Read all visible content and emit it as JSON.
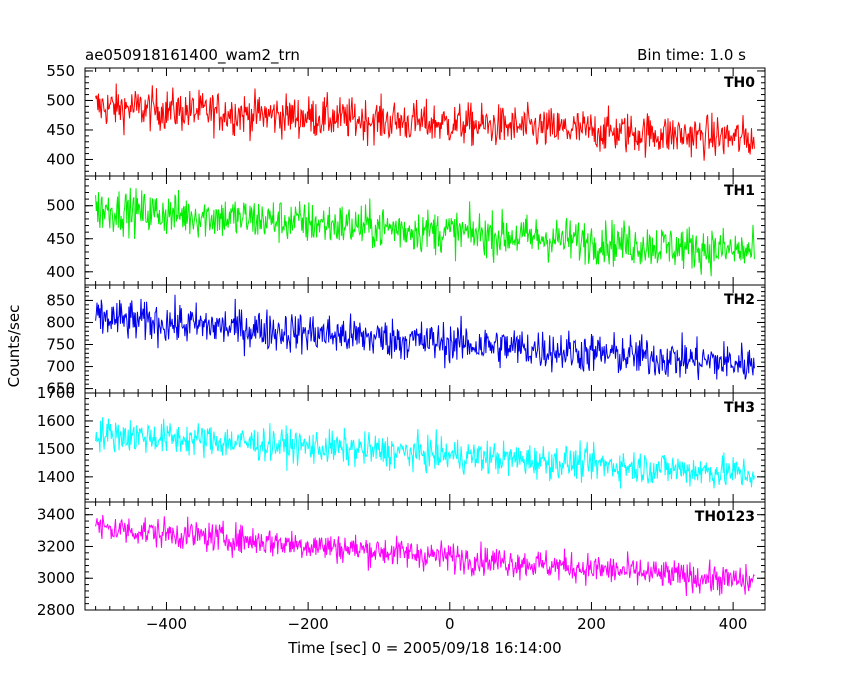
{
  "header": {
    "title": "ae050918161400_wam2_trn",
    "bin_time": "Bin time: 1.0 s"
  },
  "chart_data": {
    "type": "line",
    "title": "ae050918161400_wam2_trn",
    "subtitle": "Bin time: 1.0 s",
    "xlabel": "Time [sec] 0 = 2005/09/18 16:14:00",
    "ylabel": "Counts/sec",
    "xlim": [
      -515,
      445
    ],
    "x_range": [
      -500,
      430
    ],
    "x_ticks": [
      -400,
      -200,
      0,
      200,
      400
    ],
    "x_tick_labels": [
      "−400",
      "−200",
      "0",
      "200",
      "400"
    ],
    "grid": false,
    "panels": [
      {
        "name": "TH0",
        "color": "#ff0000",
        "ylim": [
          372,
          555
        ],
        "y_ticks": [
          400,
          450,
          500,
          550
        ],
        "trend_start": 490,
        "trend_end": 435,
        "noise_amplitude": 32
      },
      {
        "name": "TH1",
        "color": "#00ee00",
        "ylim": [
          380,
          545
        ],
        "y_ticks": [
          400,
          450,
          500
        ],
        "trend_start": 495,
        "trend_end": 430,
        "noise_amplitude": 30
      },
      {
        "name": "TH2",
        "color": "#0000ee",
        "ylim": [
          640,
          885
        ],
        "y_ticks": [
          650,
          700,
          750,
          800,
          850
        ],
        "trend_start": 810,
        "trend_end": 705,
        "noise_amplitude": 42
      },
      {
        "name": "TH3",
        "color": "#00ffff",
        "ylim": [
          1310,
          1700
        ],
        "y_ticks": [
          1400,
          1500,
          1600,
          1700
        ],
        "trend_start": 1555,
        "trend_end": 1410,
        "noise_amplitude": 55
      },
      {
        "name": "TH0123",
        "color": "#ff00ff",
        "ylim": [
          2800,
          3480
        ],
        "y_ticks": [
          2800,
          3000,
          3200,
          3400
        ],
        "trend_start": 3320,
        "trend_end": 2975,
        "noise_amplitude": 85
      }
    ]
  }
}
